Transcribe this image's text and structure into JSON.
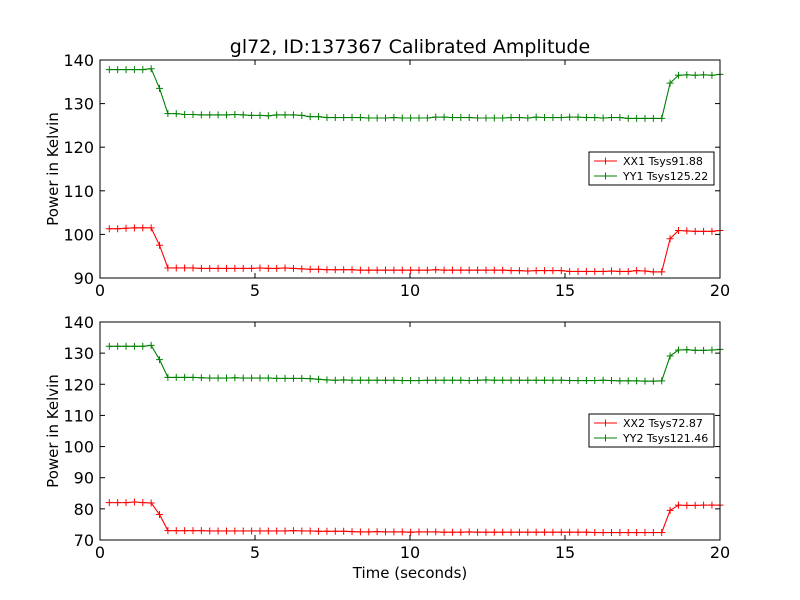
{
  "title": "gl72, ID:137367 Calibrated Amplitude",
  "xlabel": "Time (seconds)",
  "chart_data": [
    {
      "type": "line",
      "ylabel": "Power in Kelvin",
      "xlim": [
        0,
        20
      ],
      "ylim": [
        90,
        140
      ],
      "xticks": [
        "0",
        "5",
        "10",
        "15",
        "20"
      ],
      "yticks": [
        "90",
        "100",
        "110",
        "120",
        "130",
        "140"
      ],
      "legend_position": "right",
      "x": [
        0.3,
        0.57,
        0.84,
        1.11,
        1.38,
        1.65,
        1.92,
        2.19,
        2.46,
        2.73,
        3.0,
        3.27,
        3.54,
        3.81,
        4.08,
        4.35,
        4.62,
        4.89,
        5.16,
        5.43,
        5.7,
        5.97,
        6.24,
        6.51,
        6.78,
        7.05,
        7.32,
        7.59,
        7.86,
        8.13,
        8.4,
        8.67,
        8.94,
        9.21,
        9.48,
        9.75,
        10.02,
        10.29,
        10.56,
        10.83,
        11.1,
        11.37,
        11.64,
        11.91,
        12.18,
        12.45,
        12.72,
        12.99,
        13.26,
        13.53,
        13.8,
        14.07,
        14.34,
        14.61,
        14.88,
        15.15,
        15.42,
        15.69,
        15.96,
        16.23,
        16.5,
        16.77,
        17.04,
        17.31,
        17.58,
        17.85,
        18.12,
        18.39,
        18.66,
        18.93,
        19.2,
        19.47,
        19.74,
        20.0
      ],
      "series": [
        {
          "name": "XX1 Tsys91.88",
          "color": "#ff0000",
          "values": [
            101.3,
            101.3,
            101.4,
            101.5,
            101.5,
            101.5,
            97.5,
            92.3,
            92.3,
            92.3,
            92.3,
            92.2,
            92.2,
            92.2,
            92.2,
            92.2,
            92.2,
            92.2,
            92.3,
            92.2,
            92.2,
            92.3,
            92.2,
            92.1,
            92.0,
            92.0,
            91.9,
            91.9,
            91.9,
            91.9,
            91.8,
            91.8,
            91.8,
            91.8,
            91.8,
            91.8,
            91.8,
            91.8,
            91.8,
            91.9,
            91.8,
            91.8,
            91.8,
            91.8,
            91.8,
            91.8,
            91.8,
            91.8,
            91.7,
            91.7,
            91.6,
            91.7,
            91.7,
            91.7,
            91.7,
            91.5,
            91.5,
            91.5,
            91.5,
            91.5,
            91.6,
            91.5,
            91.5,
            91.7,
            91.6,
            91.4,
            91.4,
            99.0,
            100.9,
            100.8,
            100.7,
            100.7,
            100.7,
            100.9
          ]
        },
        {
          "name": "YY1 Tsys125.22",
          "color": "#008000",
          "values": [
            137.8,
            137.8,
            137.8,
            137.8,
            137.8,
            138.0,
            133.5,
            127.7,
            127.7,
            127.5,
            127.5,
            127.4,
            127.4,
            127.4,
            127.4,
            127.5,
            127.4,
            127.3,
            127.3,
            127.2,
            127.4,
            127.4,
            127.4,
            127.3,
            127.0,
            127.0,
            126.8,
            126.8,
            126.8,
            126.8,
            126.8,
            126.7,
            126.7,
            126.7,
            126.8,
            126.7,
            126.7,
            126.7,
            126.7,
            126.9,
            126.9,
            126.8,
            126.8,
            126.8,
            126.7,
            126.7,
            126.7,
            126.7,
            126.8,
            126.8,
            126.7,
            126.9,
            126.8,
            126.8,
            126.8,
            126.9,
            126.9,
            126.8,
            126.8,
            126.7,
            126.8,
            126.8,
            126.6,
            126.6,
            126.6,
            126.6,
            126.6,
            134.7,
            136.5,
            136.6,
            136.5,
            136.6,
            136.5,
            136.7
          ]
        }
      ]
    },
    {
      "type": "line",
      "ylabel": "Power in Kelvin",
      "xlim": [
        0,
        20
      ],
      "ylim": [
        70,
        140
      ],
      "xticks": [
        "0",
        "5",
        "10",
        "15",
        "20"
      ],
      "yticks": [
        "70",
        "80",
        "90",
        "100",
        "110",
        "120",
        "130",
        "140"
      ],
      "legend_position": "right",
      "x": [
        0.3,
        0.57,
        0.84,
        1.11,
        1.38,
        1.65,
        1.92,
        2.19,
        2.46,
        2.73,
        3.0,
        3.27,
        3.54,
        3.81,
        4.08,
        4.35,
        4.62,
        4.89,
        5.16,
        5.43,
        5.7,
        5.97,
        6.24,
        6.51,
        6.78,
        7.05,
        7.32,
        7.59,
        7.86,
        8.13,
        8.4,
        8.67,
        8.94,
        9.21,
        9.48,
        9.75,
        10.02,
        10.29,
        10.56,
        10.83,
        11.1,
        11.37,
        11.64,
        11.91,
        12.18,
        12.45,
        12.72,
        12.99,
        13.26,
        13.53,
        13.8,
        14.07,
        14.34,
        14.61,
        14.88,
        15.15,
        15.42,
        15.69,
        15.96,
        16.23,
        16.5,
        16.77,
        17.04,
        17.31,
        17.58,
        17.85,
        18.12,
        18.39,
        18.66,
        18.93,
        19.2,
        19.47,
        19.74,
        20.0
      ],
      "series": [
        {
          "name": "XX2 Tsys72.87",
          "color": "#ff0000",
          "values": [
            82.0,
            82.0,
            82.0,
            82.2,
            82.0,
            81.9,
            78.2,
            73.0,
            73.0,
            73.0,
            73.0,
            73.0,
            72.9,
            72.9,
            72.9,
            72.9,
            72.9,
            72.9,
            72.9,
            72.9,
            72.9,
            72.9,
            73.0,
            72.9,
            72.9,
            72.8,
            72.8,
            72.8,
            72.8,
            72.7,
            72.6,
            72.6,
            72.7,
            72.6,
            72.6,
            72.6,
            72.5,
            72.6,
            72.6,
            72.6,
            72.5,
            72.5,
            72.5,
            72.6,
            72.5,
            72.5,
            72.5,
            72.5,
            72.5,
            72.5,
            72.5,
            72.5,
            72.5,
            72.5,
            72.5,
            72.5,
            72.5,
            72.5,
            72.4,
            72.4,
            72.4,
            72.4,
            72.4,
            72.4,
            72.4,
            72.4,
            72.4,
            79.5,
            81.2,
            81.1,
            81.1,
            81.2,
            81.2,
            81.2
          ]
        },
        {
          "name": "YY2 Tsys121.46",
          "color": "#008000",
          "values": [
            132.2,
            132.2,
            132.2,
            132.2,
            132.2,
            132.5,
            127.9,
            122.2,
            122.2,
            122.2,
            122.2,
            122.1,
            122.0,
            122.0,
            122.0,
            122.1,
            122.0,
            122.0,
            122.0,
            122.0,
            121.9,
            121.9,
            121.9,
            121.9,
            121.8,
            121.6,
            121.4,
            121.3,
            121.4,
            121.3,
            121.3,
            121.3,
            121.3,
            121.3,
            121.3,
            121.2,
            121.2,
            121.2,
            121.3,
            121.3,
            121.3,
            121.3,
            121.3,
            121.2,
            121.3,
            121.4,
            121.3,
            121.3,
            121.3,
            121.3,
            121.3,
            121.3,
            121.3,
            121.3,
            121.3,
            121.2,
            121.2,
            121.2,
            121.2,
            121.3,
            121.2,
            121.1,
            121.1,
            121.1,
            121.0,
            121.0,
            121.1,
            129.1,
            131.0,
            131.1,
            130.9,
            130.9,
            131.0,
            131.2
          ]
        }
      ]
    }
  ]
}
